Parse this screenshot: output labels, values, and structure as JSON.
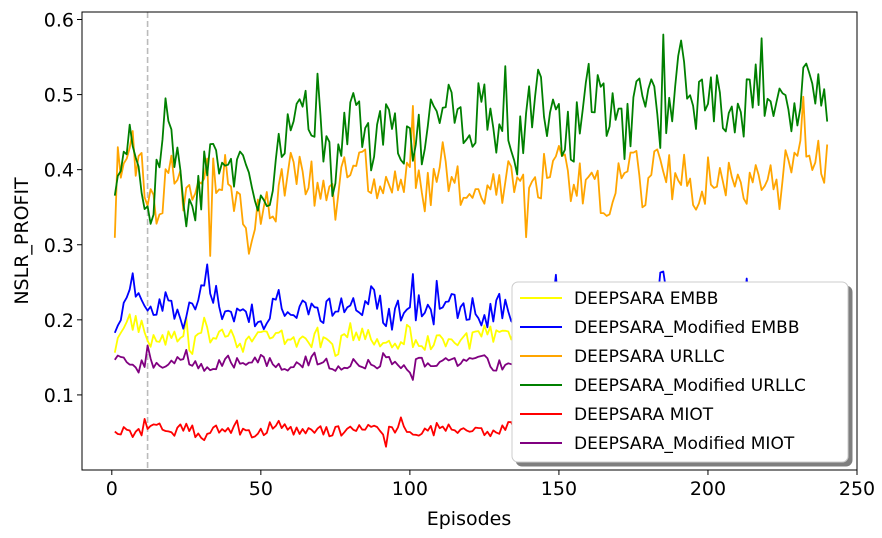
{
  "chart_data": {
    "type": "line",
    "title": "",
    "xlabel": "Episodes",
    "ylabel": "NSLR_PROFIT",
    "xlim": [
      -10,
      250
    ],
    "ylim": [
      0,
      0.61
    ],
    "xticks": [
      0,
      50,
      100,
      150,
      200,
      250
    ],
    "xtick_labels": [
      "0",
      "50",
      "100",
      "150",
      "200",
      "250"
    ],
    "yticks": [
      0.1,
      0.2,
      0.3,
      0.4,
      0.5,
      0.6
    ],
    "ytick_labels": [
      "0.1",
      "0.2",
      "0.3",
      "0.4",
      "0.5",
      "0.6"
    ],
    "grid": false,
    "vertical_reference_line": {
      "x": 12,
      "style": "dashed",
      "color": "#bbbbbb"
    },
    "legend_placement": "lower-right",
    "x_range": [
      1,
      240
    ],
    "series": [
      {
        "name": "DEEPSARA EMBB",
        "color": "#ffff00",
        "mean": 0.175,
        "amplitude": 0.014,
        "spikes": [
          [
            10,
            0.199
          ],
          [
            25,
            0.204
          ],
          [
            31,
            0.203
          ],
          [
            100,
            0.19
          ]
        ],
        "values": [
          0.17,
          0.2,
          0.165,
          0.18,
          0.16,
          0.175,
          0.19,
          0.17,
          0.18,
          0.175,
          0.172,
          0.178,
          0.16,
          0.185,
          0.175,
          0.17,
          0.18,
          0.165,
          0.178,
          0.17,
          0.18,
          0.175,
          0.172,
          0.168,
          0.18,
          0.175,
          0.17,
          0.182,
          0.165,
          0.175,
          0.17,
          0.18,
          0.175,
          0.19,
          0.17,
          0.16,
          0.175,
          0.18,
          0.178,
          0.17
        ]
      },
      {
        "name": "DEEPSARA_Modified EMBB",
        "color": "#0000ff",
        "mean": 0.215,
        "amplitude": 0.02,
        "spikes": [
          [
            7,
            0.262
          ],
          [
            30,
            0.246
          ],
          [
            101,
            0.261
          ],
          [
            109,
            0.252
          ],
          [
            149,
            0.26
          ],
          [
            213,
            0.255
          ]
        ],
        "values": [
          0.2,
          0.23,
          0.21,
          0.22,
          0.2,
          0.26,
          0.21,
          0.22,
          0.19,
          0.225,
          0.215,
          0.205,
          0.22,
          0.21,
          0.23,
          0.2,
          0.22,
          0.215,
          0.21,
          0.225,
          0.2,
          0.22,
          0.21,
          0.215,
          0.23,
          0.2,
          0.21,
          0.22,
          0.205,
          0.215,
          0.25,
          0.21,
          0.22,
          0.2,
          0.215,
          0.225,
          0.21,
          0.2,
          0.22,
          0.215
        ]
      },
      {
        "name": "DEEPSARA URLLC",
        "color": "#ffa500",
        "mean": 0.39,
        "amplitude": 0.035,
        "spikes": [
          [
            2,
            0.43
          ],
          [
            33,
            0.285
          ],
          [
            46,
            0.288
          ],
          [
            101,
            0.485
          ],
          [
            139,
            0.31
          ],
          [
            232,
            0.497
          ]
        ],
        "values": [
          0.335,
          0.43,
          0.34,
          0.39,
          0.36,
          0.38,
          0.4,
          0.35,
          0.33,
          0.37,
          0.4,
          0.38,
          0.35,
          0.42,
          0.39,
          0.36,
          0.4,
          0.37,
          0.41,
          0.38,
          0.39,
          0.36,
          0.4,
          0.38,
          0.42,
          0.37,
          0.39,
          0.36,
          0.41,
          0.38,
          0.4,
          0.39,
          0.37,
          0.41,
          0.38,
          0.39,
          0.37,
          0.4,
          0.43,
          0.415
        ]
      },
      {
        "name": "DEEPSARA_Modified URLLC",
        "color": "#008000",
        "mean": 0.46,
        "amplitude": 0.04,
        "spikes": [
          [
            6,
            0.46
          ],
          [
            18,
            0.495
          ],
          [
            69,
            0.528
          ],
          [
            132,
            0.538
          ],
          [
            185,
            0.58
          ],
          [
            218,
            0.575
          ]
        ],
        "values": [
          0.39,
          0.41,
          0.35,
          0.46,
          0.33,
          0.4,
          0.44,
          0.38,
          0.35,
          0.42,
          0.5,
          0.45,
          0.4,
          0.47,
          0.43,
          0.49,
          0.42,
          0.45,
          0.5,
          0.44,
          0.48,
          0.46,
          0.43,
          0.5,
          0.47,
          0.44,
          0.52,
          0.48,
          0.45,
          0.5,
          0.46,
          0.54,
          0.48,
          0.51,
          0.45,
          0.52,
          0.5,
          0.48,
          0.53,
          0.5
        ]
      },
      {
        "name": "DEEPSARA MIOT",
        "color": "#ff0000",
        "mean": 0.052,
        "amplitude": 0.008,
        "spikes": [
          [
            11,
            0.068
          ],
          [
            42,
            0.066
          ],
          [
            92,
            0.031
          ],
          [
            97,
            0.07
          ]
        ],
        "values": [
          0.055,
          0.048,
          0.06,
          0.05,
          0.055,
          0.045,
          0.058,
          0.05,
          0.052,
          0.06,
          0.048,
          0.055,
          0.05,
          0.058,
          0.052,
          0.05,
          0.055,
          0.048,
          0.06,
          0.052,
          0.05,
          0.055,
          0.058,
          0.048,
          0.052,
          0.055,
          0.05,
          0.058,
          0.052,
          0.048,
          0.055,
          0.05,
          0.06,
          0.052,
          0.055,
          0.05,
          0.058,
          0.052,
          0.05,
          0.055
        ]
      },
      {
        "name": "DEEPSARA_Modified MIOT",
        "color": "#800080",
        "mean": 0.142,
        "amplitude": 0.009,
        "spikes": [
          [
            12,
            0.166
          ],
          [
            25,
            0.16
          ],
          [
            101,
            0.12
          ]
        ],
        "values": [
          0.15,
          0.135,
          0.145,
          0.14,
          0.15,
          0.13,
          0.145,
          0.14,
          0.15,
          0.135,
          0.142,
          0.148,
          0.138,
          0.145,
          0.14,
          0.15,
          0.135,
          0.145,
          0.14,
          0.142,
          0.148,
          0.138,
          0.145,
          0.14,
          0.15,
          0.135,
          0.142,
          0.148,
          0.138,
          0.145,
          0.14,
          0.15,
          0.135,
          0.145,
          0.14,
          0.142,
          0.148,
          0.138,
          0.145,
          0.14
        ]
      }
    ]
  }
}
